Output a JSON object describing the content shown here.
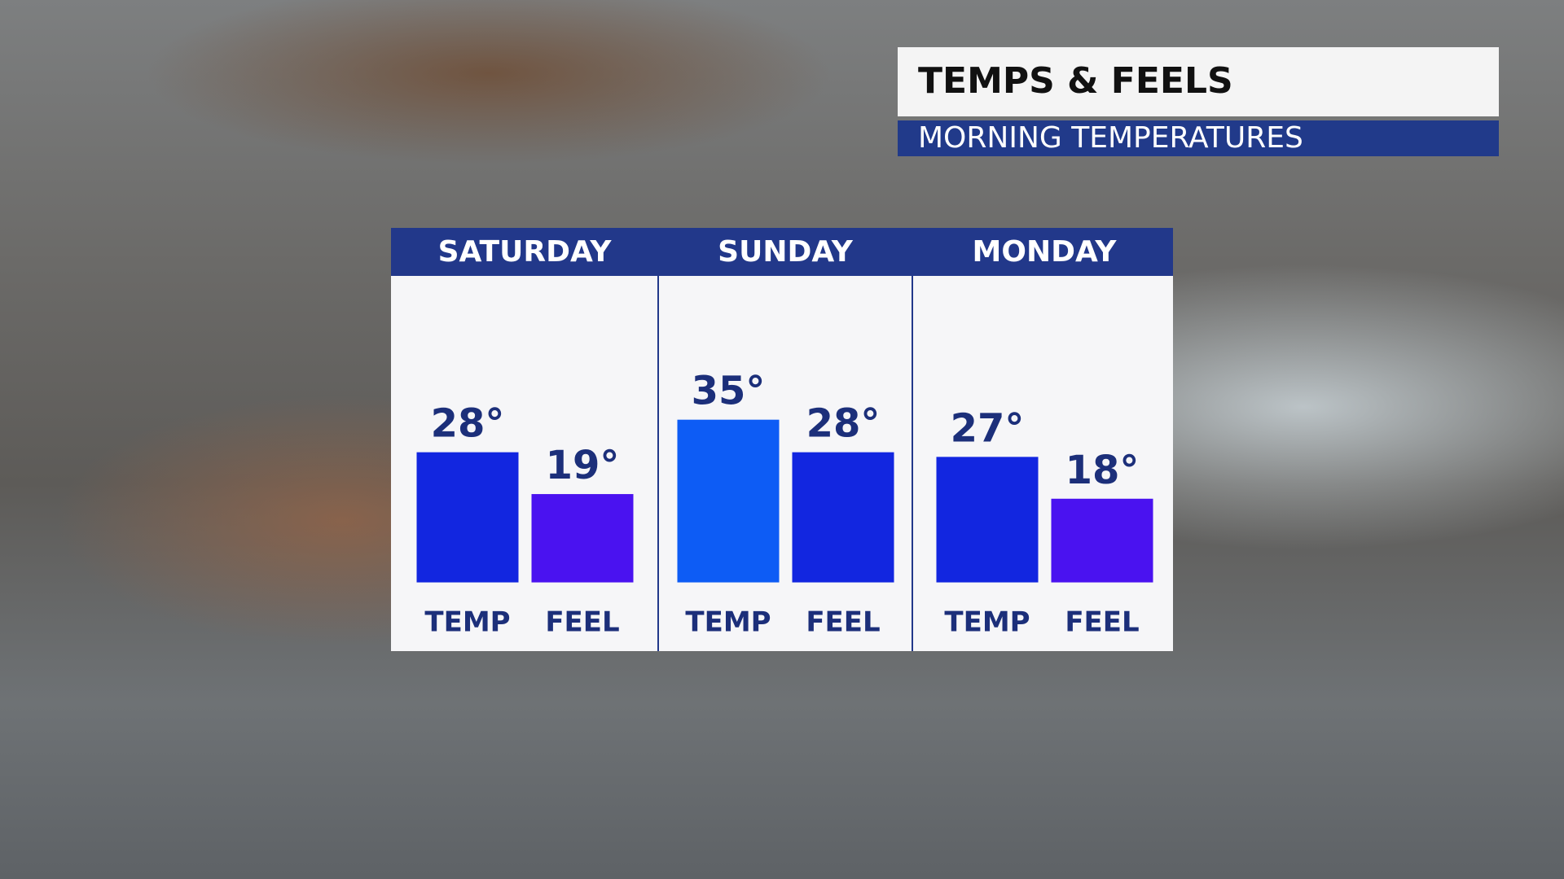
{
  "chart_data": {
    "type": "bar",
    "title": "TEMPS & FEELS",
    "subtitle": "MORNING TEMPERATURES",
    "categories": [
      "SATURDAY",
      "SUNDAY",
      "MONDAY"
    ],
    "series": [
      {
        "name": "TEMP",
        "colors": [
          "#1226e0",
          "#0d5cf5",
          "#1226e0"
        ],
        "values": [
          28,
          35,
          27
        ],
        "value_labels": [
          "28°",
          "35°",
          "27°"
        ]
      },
      {
        "name": "FEEL",
        "colors": [
          "#4a12f0",
          "#1226e0",
          "#4a12f0"
        ],
        "values": [
          19,
          28,
          18
        ],
        "value_labels": [
          "19°",
          "28°",
          "18°"
        ]
      }
    ],
    "ylim": [
      -2,
      50
    ]
  }
}
